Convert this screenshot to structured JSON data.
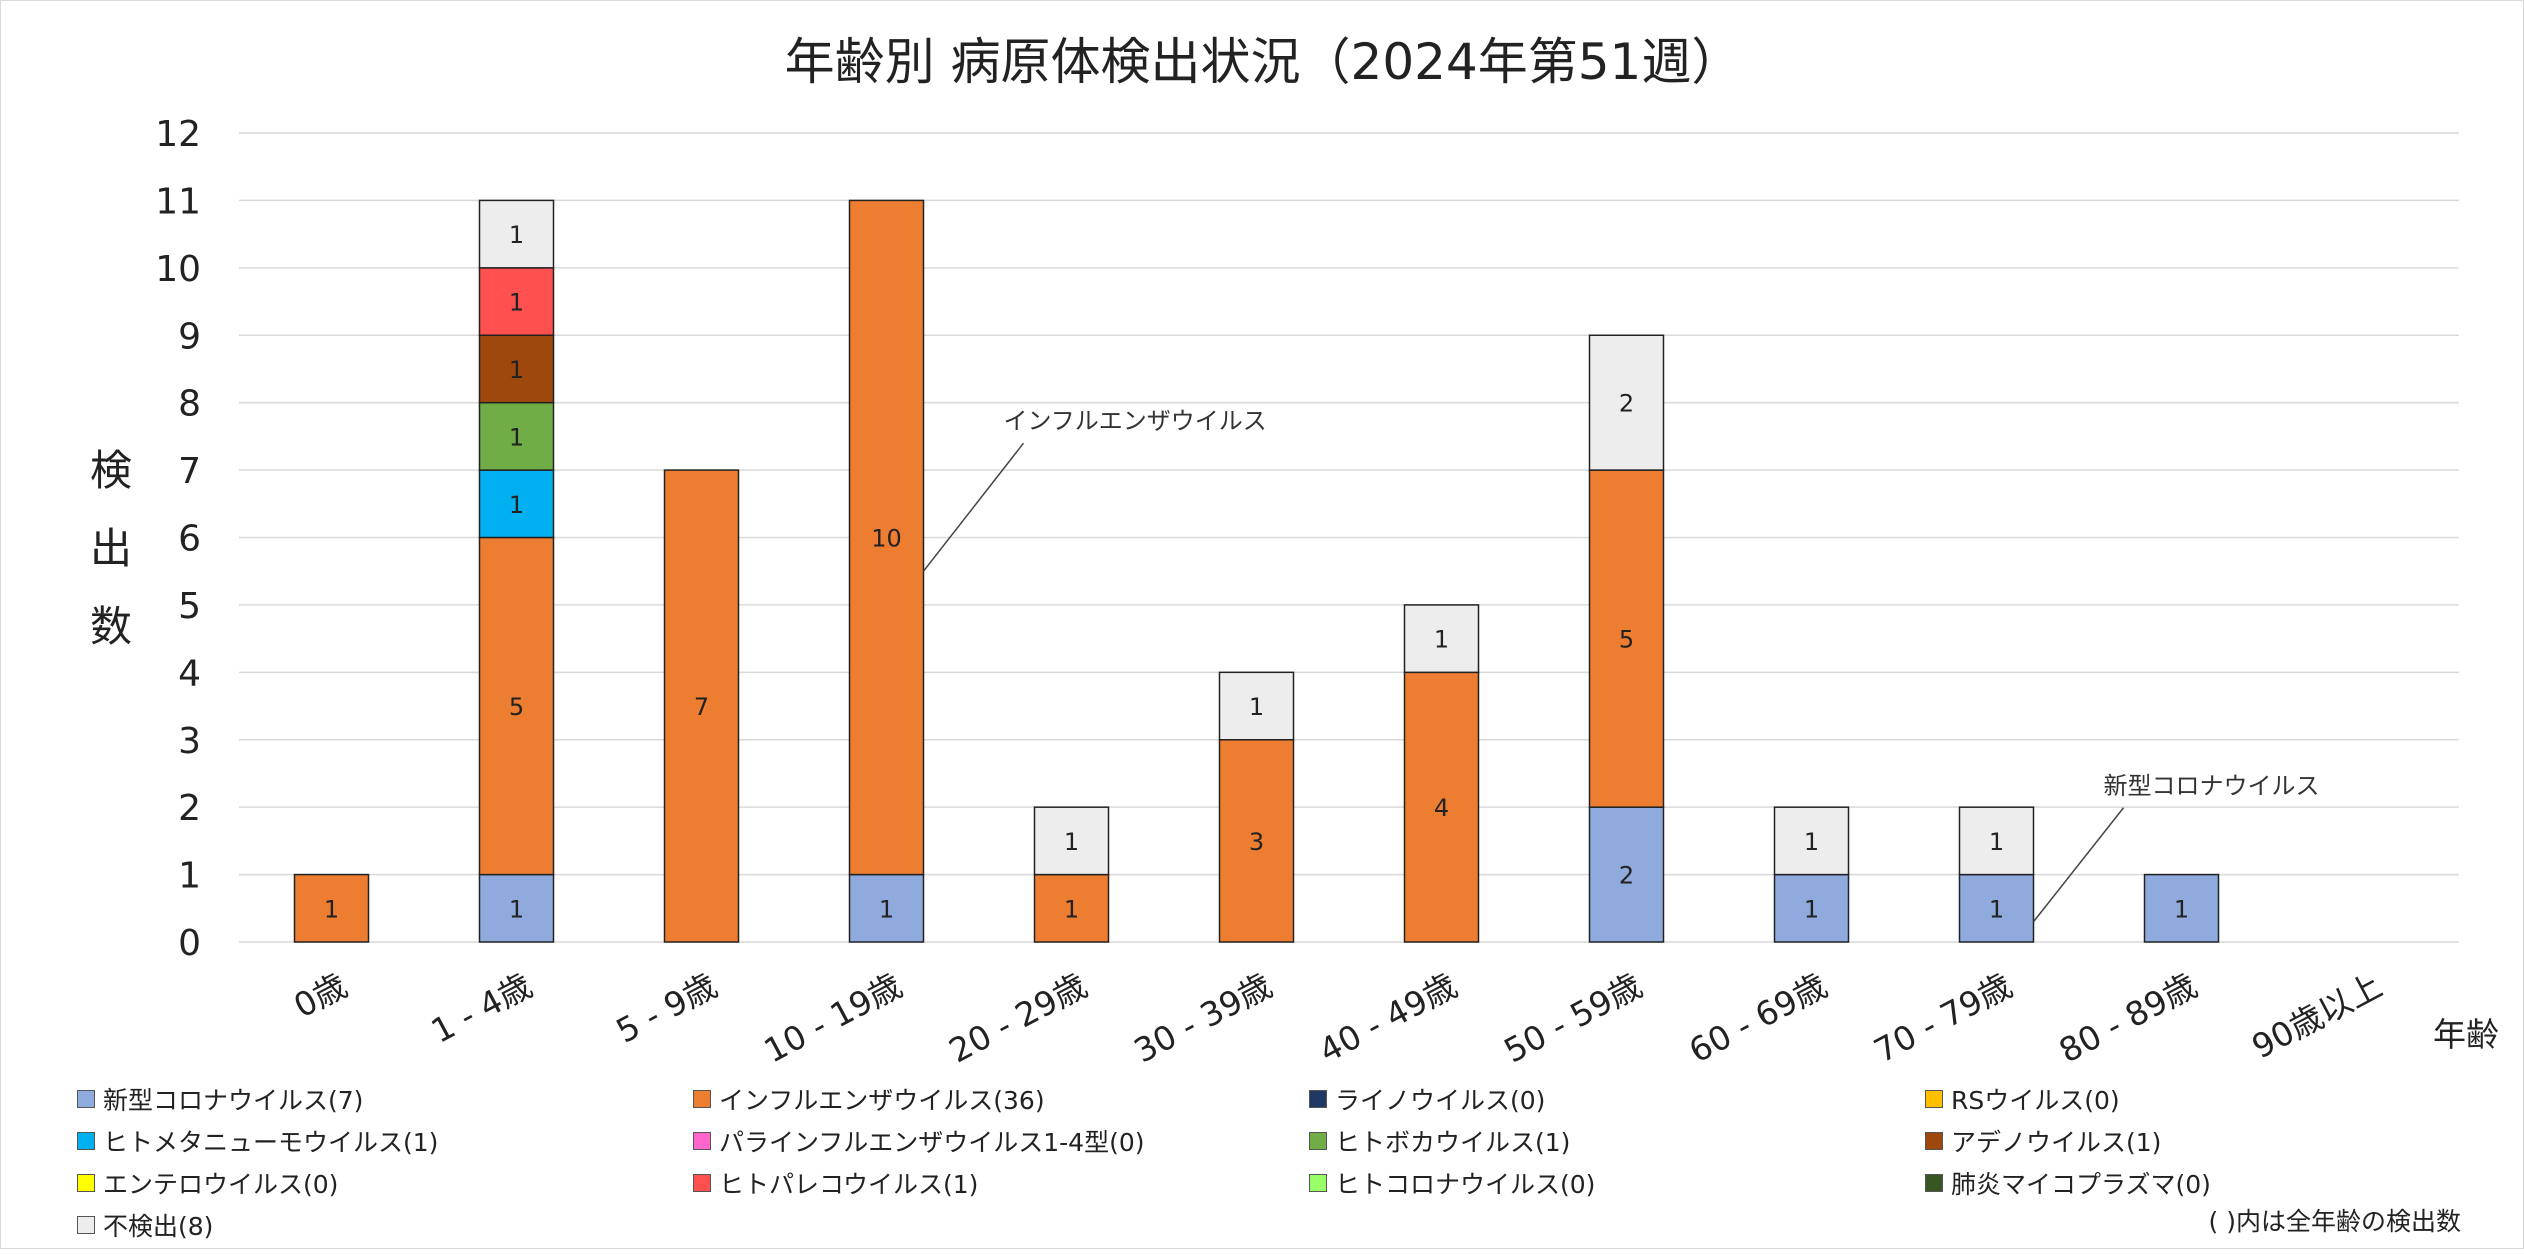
{
  "chart_data": {
    "type": "bar",
    "stacked": true,
    "title": "年齢別 病原体検出状況（2024年第51週）",
    "ylabel": "検出数",
    "xlabel": "年齢",
    "ylim": [
      0,
      12
    ],
    "yticks": [
      "0",
      "1",
      "2",
      "3",
      "4",
      "5",
      "6",
      "7",
      "8",
      "9",
      "10",
      "11",
      "12"
    ],
    "grid": true,
    "categories": [
      "0歳",
      "1 - 4歳",
      "5 - 9歳",
      "10 - 19歳",
      "20 - 29歳",
      "30 - 39歳",
      "40 - 49歳",
      "50 - 59歳",
      "60 - 69歳",
      "70 - 79歳",
      "80 - 89歳",
      "90歳以上"
    ],
    "series": [
      {
        "name": "新型コロナウイルス",
        "legend": "新型コロナウイルス(7)",
        "color": "#8faadc",
        "values": [
          0,
          1,
          0,
          1,
          0,
          0,
          0,
          2,
          1,
          1,
          1,
          0
        ]
      },
      {
        "name": "インフルエンザウイルス",
        "legend": "インフルエンザウイルス(36)",
        "color": "#ed7d31",
        "values": [
          1,
          5,
          7,
          10,
          1,
          3,
          4,
          5,
          0,
          0,
          0,
          0
        ]
      },
      {
        "name": "ライノウイルス",
        "legend": "ライノウイルス(0)",
        "color": "#203864",
        "values": [
          0,
          0,
          0,
          0,
          0,
          0,
          0,
          0,
          0,
          0,
          0,
          0
        ]
      },
      {
        "name": "RSウイルス",
        "legend": "RSウイルス(0)",
        "color": "#ffc000",
        "values": [
          0,
          0,
          0,
          0,
          0,
          0,
          0,
          0,
          0,
          0,
          0,
          0
        ]
      },
      {
        "name": "ヒトメタニューモウイルス",
        "legend": "ヒトメタニューモウイルス(1)",
        "color": "#00b0f0",
        "values": [
          0,
          1,
          0,
          0,
          0,
          0,
          0,
          0,
          0,
          0,
          0,
          0
        ]
      },
      {
        "name": "パラインフルエンザウイルス1-4型",
        "legend": "パラインフルエンザウイルス1-4型(0)",
        "color": "#ff66cc",
        "values": [
          0,
          0,
          0,
          0,
          0,
          0,
          0,
          0,
          0,
          0,
          0,
          0
        ]
      },
      {
        "name": "ヒトボカウイルス",
        "legend": "ヒトボカウイルス(1)",
        "color": "#70ad47",
        "values": [
          0,
          1,
          0,
          0,
          0,
          0,
          0,
          0,
          0,
          0,
          0,
          0
        ]
      },
      {
        "name": "アデノウイルス",
        "legend": "アデノウイルス(1)",
        "color": "#9e480e",
        "values": [
          0,
          1,
          0,
          0,
          0,
          0,
          0,
          0,
          0,
          0,
          0,
          0
        ]
      },
      {
        "name": "エンテロウイルス",
        "legend": "エンテロウイルス(0)",
        "color": "#ffff00",
        "values": [
          0,
          0,
          0,
          0,
          0,
          0,
          0,
          0,
          0,
          0,
          0,
          0
        ]
      },
      {
        "name": "ヒトパレコウイルス",
        "legend": "ヒトパレコウイルス(1)",
        "color": "#ff5050",
        "values": [
          0,
          1,
          0,
          0,
          0,
          0,
          0,
          0,
          0,
          0,
          0,
          0
        ]
      },
      {
        "name": "ヒトコロナウイルス",
        "legend": "ヒトコロナウイルス(0)",
        "color": "#99ff66",
        "values": [
          0,
          0,
          0,
          0,
          0,
          0,
          0,
          0,
          0,
          0,
          0,
          0
        ]
      },
      {
        "name": "肺炎マイコプラズマ",
        "legend": "肺炎マイコプラズマ(0)",
        "color": "#375623",
        "values": [
          0,
          0,
          0,
          0,
          0,
          0,
          0,
          0,
          0,
          0,
          0,
          0
        ]
      },
      {
        "name": "不検出",
        "legend": "不検出(8)",
        "color": "#ededed",
        "values": [
          0,
          1,
          0,
          0,
          1,
          1,
          1,
          2,
          1,
          1,
          0,
          0
        ]
      }
    ],
    "legend_position": "bottom",
    "annotations": [
      {
        "text": "インフルエンザウイルス",
        "category": "10 - 19歳",
        "value": 5.5
      },
      {
        "text": "新型コロナウイルス",
        "category": "70 - 79歳",
        "value": 0.3
      }
    ],
    "footnote": "( )内は全年齢の検出数"
  }
}
